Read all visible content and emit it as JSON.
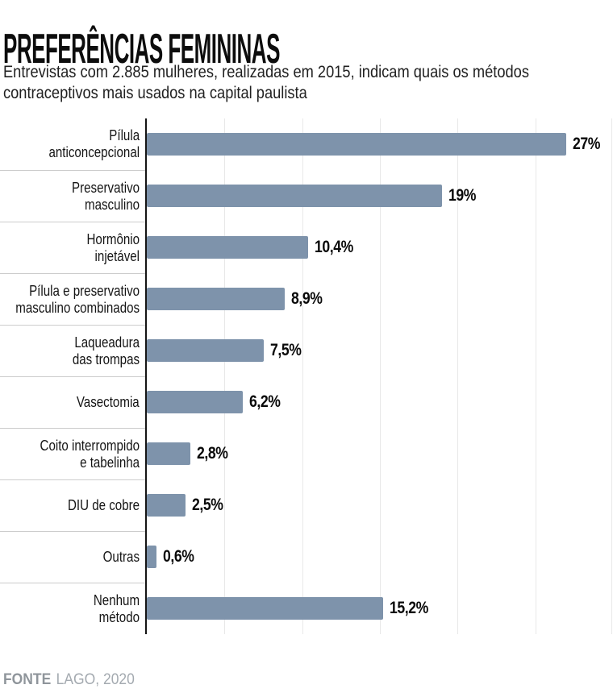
{
  "header": {
    "title": "PREFERÊNCIAS FEMININAS",
    "subtitle": "Entrevistas com 2.885 mulheres, realizadas em 2015, indicam quais os métodos\ncontraceptivos mais usados na capital paulista"
  },
  "chart_data": {
    "type": "bar",
    "orientation": "horizontal",
    "unit": "%",
    "xlim": [
      0,
      30
    ],
    "gridline_step_percent": 5,
    "grid": true,
    "bar_color": "#7e93ab",
    "categories": [
      "Pílula anticoncepcional",
      "Preservativo masculino",
      "Hormônio injetável",
      "Pílula e preservativo masculino combinados",
      "Laqueadura das trompas",
      "Vasectomia",
      "Coito interrompido e tabelinha",
      "DIU de cobre",
      "Outras",
      "Nenhum método"
    ],
    "values": [
      27,
      19,
      10.4,
      8.9,
      7.5,
      6.2,
      2.8,
      2.5,
      0.6,
      15.2
    ],
    "rows": [
      {
        "label": "Pílula\nanticoncepcional",
        "value": 27,
        "value_label": "27%"
      },
      {
        "label": "Preservativo\nmasculino",
        "value": 19,
        "value_label": "19%"
      },
      {
        "label": "Hormônio\ninjetável",
        "value": 10.4,
        "value_label": "10,4%"
      },
      {
        "label": "Pílula e preservativo\nmasculino combinados",
        "value": 8.9,
        "value_label": "8,9%"
      },
      {
        "label": "Laqueadura\ndas trompas",
        "value": 7.5,
        "value_label": "7,5%"
      },
      {
        "label": "Vasectomia",
        "value": 6.2,
        "value_label": "6,2%"
      },
      {
        "label": "Coito interrompido\ne tabelinha",
        "value": 2.8,
        "value_label": "2,8%"
      },
      {
        "label": "DIU de cobre",
        "value": 2.5,
        "value_label": "2,5%"
      },
      {
        "label": "Outras",
        "value": 0.6,
        "value_label": "0,6%"
      },
      {
        "label": "Nenhum\nmétodo",
        "value": 15.2,
        "value_label": "15,2%"
      }
    ]
  },
  "footer": {
    "source_label": "FONTE",
    "source_value": "LAGO, 2020"
  }
}
